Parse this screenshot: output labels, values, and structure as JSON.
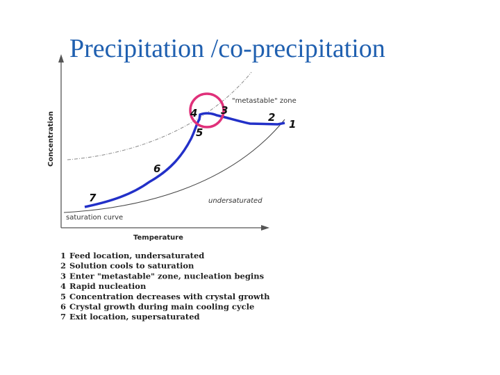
{
  "title": "Precipitation /co-precipitation",
  "diagram": {
    "y_axis_label": "Concentration",
    "x_axis_label": "Temperature",
    "metastable_label": "\"metastable\" zone",
    "undersaturated_label": "undersaturated",
    "saturation_label": "saturation curve",
    "points": [
      "1",
      "2",
      "3",
      "4",
      "5",
      "6",
      "7"
    ]
  },
  "legend": [
    {
      "number": "1",
      "text": "Feed location, undersaturated"
    },
    {
      "number": "2",
      "text": "Solution cools to saturation"
    },
    {
      "number": "3",
      "text": "Enter \"metastable\" zone, nucleation begins"
    },
    {
      "number": "4",
      "text": "Rapid nucleation"
    },
    {
      "number": "5",
      "text": "Concentration decreases with crystal growth"
    },
    {
      "number": "6",
      "text": "Crystal growth during main cooling cycle"
    },
    {
      "number": "7",
      "text": "Exit location, supersaturated"
    }
  ]
}
